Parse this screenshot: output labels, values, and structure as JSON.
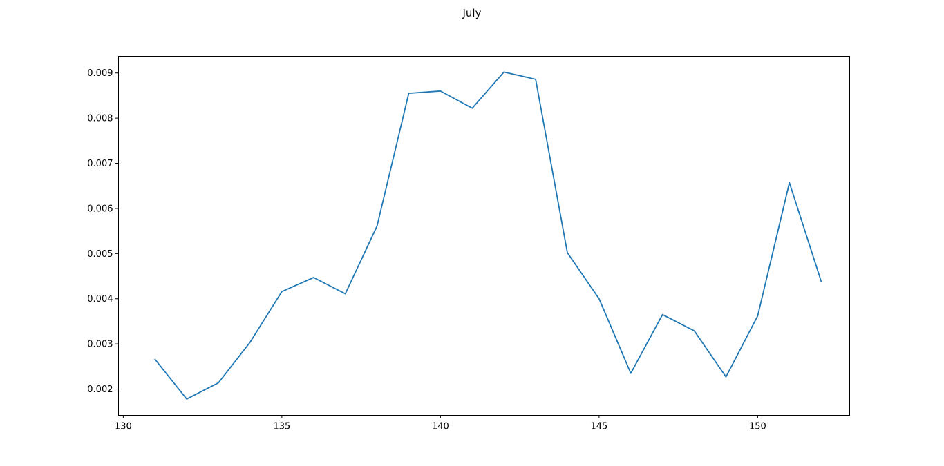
{
  "chart_data": {
    "type": "line",
    "title": "July",
    "xlabel": "",
    "ylabel": "",
    "xlim": [
      129.85,
      152.9
    ],
    "ylim": [
      0.00142,
      0.00937
    ],
    "xticks": [
      130,
      135,
      140,
      145,
      150
    ],
    "yticks": [
      0.002,
      0.003,
      0.004,
      0.005,
      0.006,
      0.007,
      0.008,
      0.009
    ],
    "xtick_labels": [
      "130",
      "135",
      "140",
      "145",
      "150"
    ],
    "ytick_labels": [
      "0.002",
      "0.003",
      "0.004",
      "0.005",
      "0.006",
      "0.007",
      "0.008",
      "0.009"
    ],
    "grid": false,
    "series": [
      {
        "name": "",
        "color": "#1f77b4",
        "x": [
          131,
          132,
          133,
          134,
          135,
          136,
          137,
          138,
          139,
          140,
          141,
          142,
          143,
          144,
          145,
          146,
          147,
          148,
          149,
          150,
          151,
          152
        ],
        "y": [
          0.00266,
          0.00178,
          0.00214,
          0.00304,
          0.00416,
          0.00447,
          0.00411,
          0.00561,
          0.00855,
          0.0086,
          0.00822,
          0.00902,
          0.00886,
          0.00502,
          0.004,
          0.00235,
          0.00365,
          0.00329,
          0.00227,
          0.00362,
          0.00657,
          0.00439
        ]
      }
    ]
  }
}
